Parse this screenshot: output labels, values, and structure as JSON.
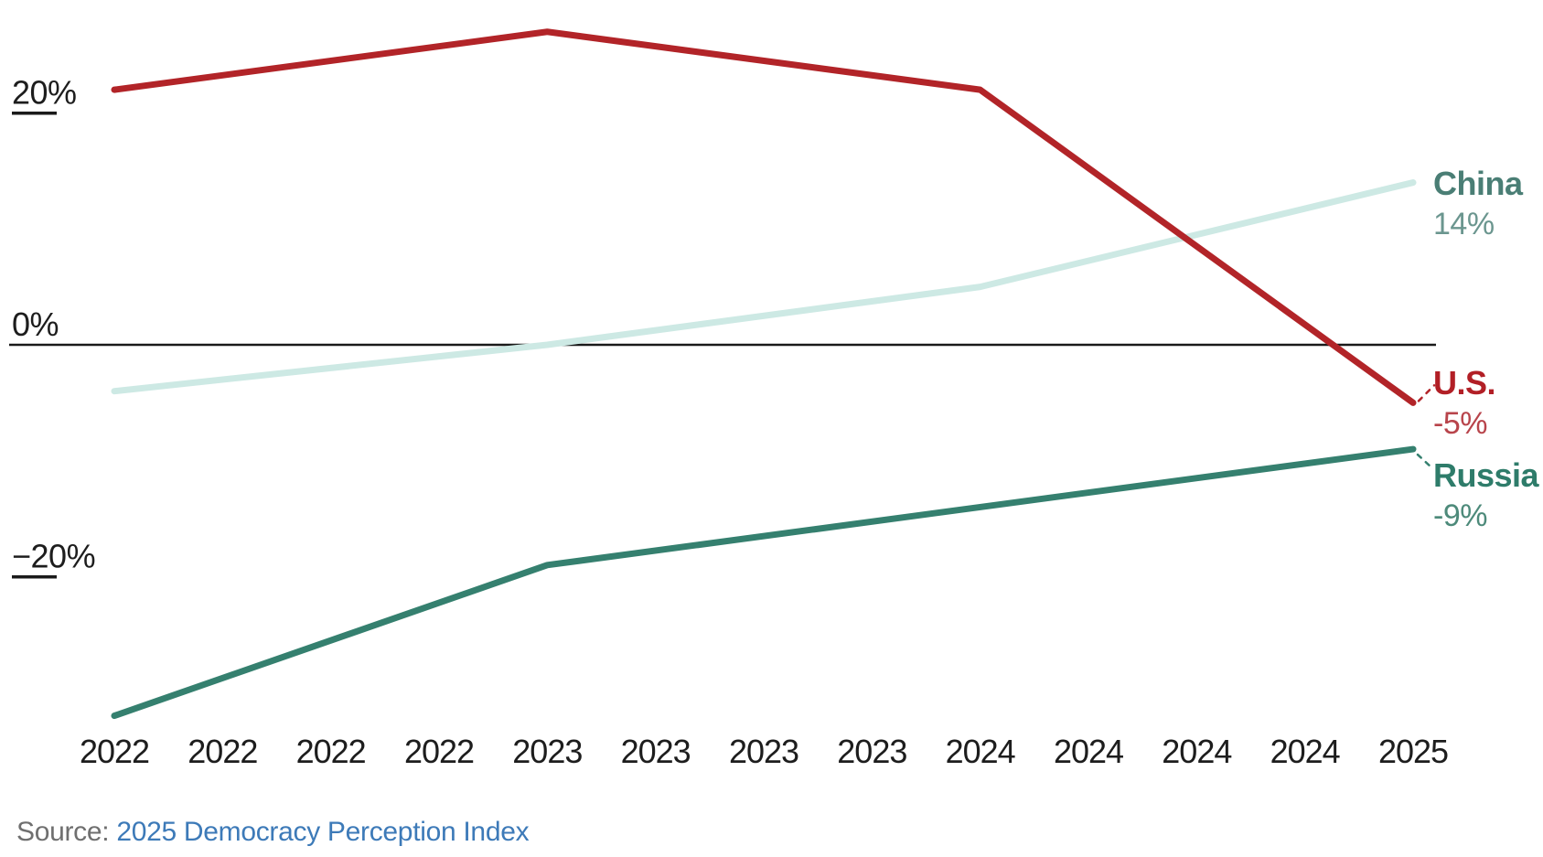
{
  "chart_data": {
    "type": "line",
    "title": "",
    "x_points": [
      "2022",
      "2023",
      "2024",
      "2025"
    ],
    "x_tick_labels": [
      "2022",
      "2022",
      "2022",
      "2022",
      "2023",
      "2023",
      "2023",
      "2023",
      "2024",
      "2024",
      "2024",
      "2024",
      "2025"
    ],
    "y_ticks": [
      {
        "value": 20,
        "label": "20%"
      },
      {
        "value": 0,
        "label": "0%"
      },
      {
        "value": -20,
        "label": "−20%"
      }
    ],
    "ylim": [
      -36,
      29
    ],
    "grid": false,
    "zero_baseline": true,
    "legend_position": "end-of-line-labels",
    "series": [
      {
        "name": "China",
        "values": [
          -4,
          0,
          5,
          14
        ],
        "end_value": "14%",
        "line_color": "#cde9e4",
        "name_color": "#4a7e75",
        "value_color": "#6b968f",
        "leader": false
      },
      {
        "name": "Russia",
        "values": [
          -32,
          -19,
          -14,
          -9
        ],
        "end_value": "-9%",
        "line_color": "#35806f",
        "name_color": "#2e7c6a",
        "value_color": "#4d8a7a",
        "leader": true
      },
      {
        "name": "U.S.",
        "values": [
          22,
          27,
          22,
          -5
        ],
        "end_value": "-5%",
        "line_color": "#b22428",
        "name_color": "#b21f26",
        "value_color": "#b8444b",
        "leader": true
      }
    ]
  },
  "source": {
    "prefix": "Source: ",
    "link_text": "2025 Democracy Perception Index"
  },
  "colors": {
    "axis": "#1a1a1a",
    "tick_text": "#1d1d1d",
    "source_text": "#6f6f6f",
    "source_link": "#3d7ab8",
    "background": "#ffffff"
  }
}
